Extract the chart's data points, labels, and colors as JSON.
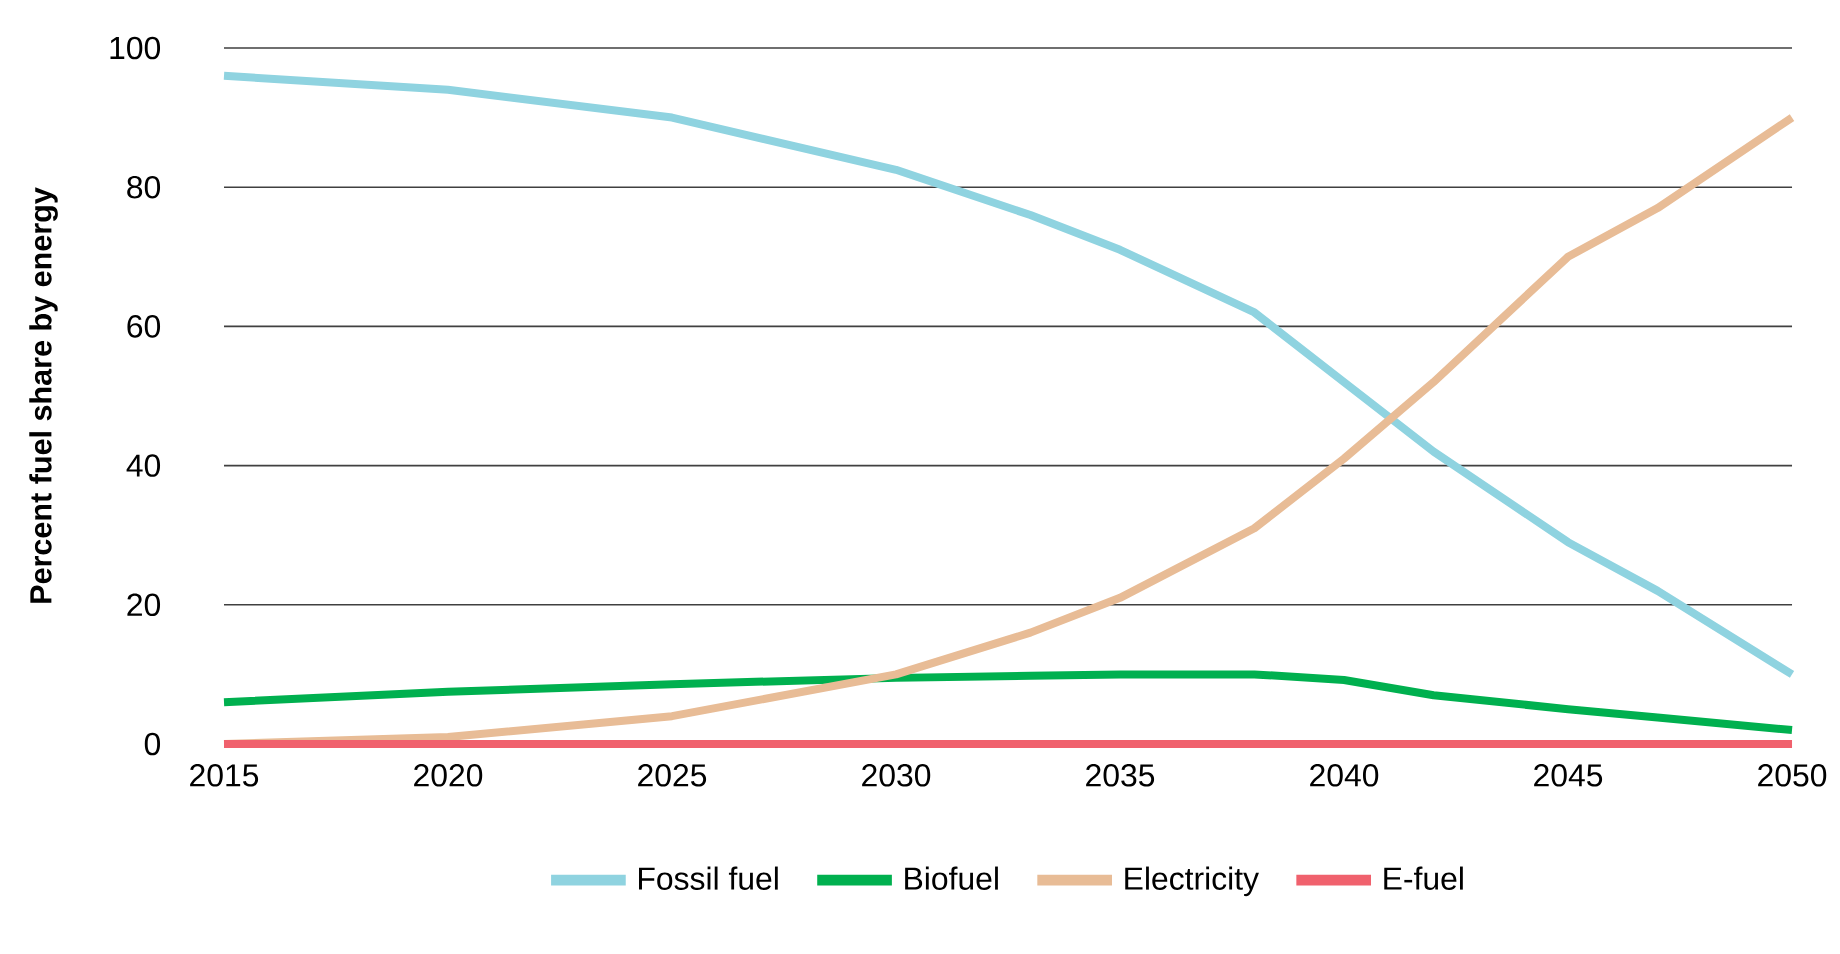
{
  "chart_data": {
    "type": "line",
    "ylabel": "Percent fuel share by energy",
    "xlim": [
      2015,
      2050
    ],
    "ylim": [
      0,
      100
    ],
    "xticks": [
      2015,
      2020,
      2025,
      2030,
      2035,
      2040,
      2045,
      2050
    ],
    "yticks": [
      0,
      20,
      40,
      60,
      80,
      100
    ],
    "grid": "y",
    "legend": "bottom",
    "x": [
      2015,
      2020,
      2025,
      2030,
      2033,
      2035,
      2038,
      2040,
      2042,
      2045,
      2047,
      2050
    ],
    "series": [
      {
        "name": "Fossil fuel",
        "color": "#8fd3e0",
        "values": [
          96,
          94,
          90,
          82.5,
          76,
          71,
          62,
          52,
          42,
          29,
          22,
          10
        ]
      },
      {
        "name": "Biofuel",
        "color": "#00b04f",
        "values": [
          6,
          7.5,
          8.6,
          9.5,
          9.8,
          10,
          10,
          9.2,
          7,
          5,
          3.8,
          2
        ]
      },
      {
        "name": "Electricity",
        "color": "#e8bc96",
        "values": [
          0,
          1,
          4,
          10,
          16,
          21,
          31,
          41,
          52,
          70,
          77,
          90
        ]
      },
      {
        "name": "E-fuel",
        "color": "#f0616d",
        "values": [
          0,
          0,
          0,
          0,
          0,
          0,
          0,
          0,
          0,
          0,
          0,
          0
        ]
      }
    ]
  }
}
